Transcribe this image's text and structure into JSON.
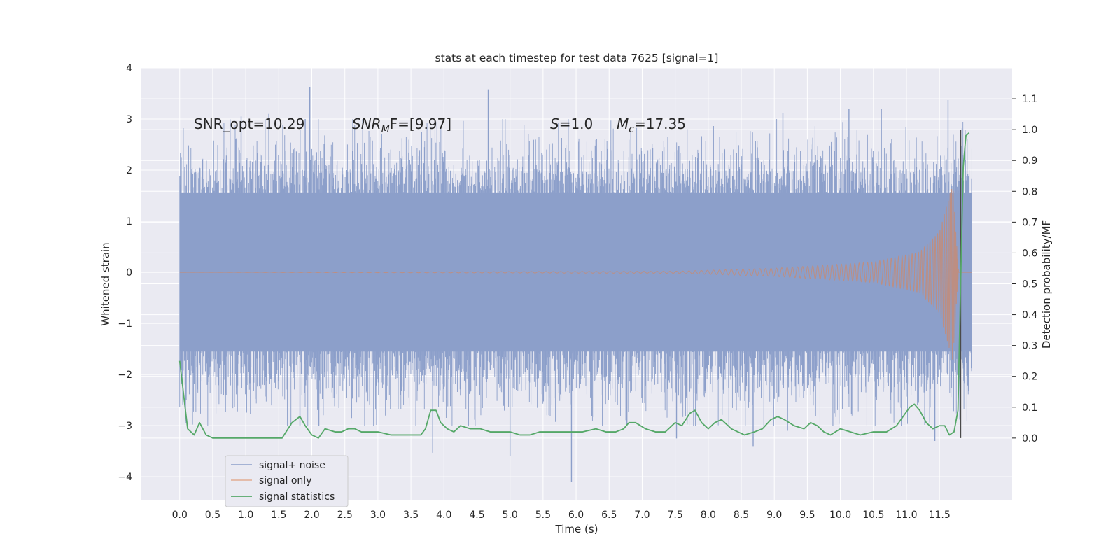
{
  "chart_data": {
    "type": "line",
    "title": "stats at each timestep for test data 7625 [signal=1]",
    "xlabel": "Time (s)",
    "ylabel": "Whitened strain",
    "ylabel_right": "Detection probability/MF",
    "xlim": [
      -0.58,
      12.6
    ],
    "ylim": [
      -4.45,
      4.0
    ],
    "ylim_right": [
      -0.2,
      1.2
    ],
    "x_ticks": [
      0.0,
      0.5,
      1.0,
      1.5,
      2.0,
      2.5,
      3.0,
      3.5,
      4.0,
      4.5,
      5.0,
      5.5,
      6.0,
      6.5,
      7.0,
      7.5,
      8.0,
      8.5,
      9.0,
      9.5,
      10.0,
      10.5,
      11.0,
      11.5
    ],
    "x_tick_labels": [
      "0.0",
      "0.5",
      "1.0",
      "1.5",
      "2.0",
      "2.5",
      "3.0",
      "3.5",
      "4.0",
      "4.5",
      "5.0",
      "5.5",
      "6.0",
      "6.5",
      "7.0",
      "7.5",
      "8.0",
      "8.5",
      "9.0",
      "9.5",
      "10.0",
      "10.5",
      "11.0",
      "11.5"
    ],
    "y_ticks": [
      -4,
      -3,
      -2,
      -1,
      0,
      1,
      2,
      3,
      4
    ],
    "y_tick_labels": [
      "−4",
      "−3",
      "−2",
      "−1",
      "0",
      "1",
      "2",
      "3",
      "4"
    ],
    "y_right_ticks": [
      0.0,
      0.1,
      0.2,
      0.3,
      0.4,
      0.5,
      0.6,
      0.7,
      0.8,
      0.9,
      1.0,
      1.1
    ],
    "y_right_tick_labels": [
      "0.0",
      "0.1",
      "0.2",
      "0.3",
      "0.4",
      "0.5",
      "0.6",
      "0.7",
      "0.8",
      "0.9",
      "1.0",
      "1.1"
    ],
    "grid": true,
    "legend_position": "lower-left",
    "annotations": {
      "snr_opt": "SNR_opt=10.29",
      "snr_mf_symbol": "SNR",
      "snr_mf_sub": "M",
      "snr_mf_tail": "F=[9.97]",
      "s_symbol": "S",
      "s_value": "=1.0",
      "mc_symbol": "M",
      "mc_sub": "c",
      "mc_value": "=17.35"
    },
    "marker_line": {
      "x": 11.82,
      "y_range": [
        0.0,
        1.0
      ]
    },
    "series": [
      {
        "name": "signal+ noise",
        "color": "#8c9fca",
        "x_range": [
          0.0,
          11.99
        ],
        "envelope_core": 1.55,
        "peak_max": 3.62,
        "peak_min": -4.12,
        "notable_spikes": [
          {
            "x": 1.97,
            "y": 3.62
          },
          {
            "x": 4.67,
            "y": 3.58
          },
          {
            "x": 11.63,
            "y": 3.37
          },
          {
            "x": 1.35,
            "y": 3.1
          },
          {
            "x": 9.13,
            "y": 3.12
          },
          {
            "x": 10.13,
            "y": 3.2
          },
          {
            "x": 10.62,
            "y": 3.2
          },
          {
            "x": 0.93,
            "y": 3.05
          },
          {
            "x": 1.9,
            "y": 3.0
          },
          {
            "x": 5.93,
            "y": -4.1
          },
          {
            "x": 5.0,
            "y": -3.6
          },
          {
            "x": 3.83,
            "y": -3.53
          },
          {
            "x": 8.68,
            "y": -3.4
          },
          {
            "x": 7.52,
            "y": -3.25
          },
          {
            "x": 11.43,
            "y": -3.3
          },
          {
            "x": 1.82,
            "y": -3.0
          },
          {
            "x": 9.2,
            "y": -3.1
          }
        ]
      },
      {
        "name": "signal only",
        "color": "#dd8452",
        "x_range": [
          0.0,
          11.99
        ],
        "chirp_peak_time": 11.7,
        "chirp_peak_amplitude": 1.75,
        "amplitude_at": [
          {
            "x": 0.0,
            "y": 0.0
          },
          {
            "x": 7.5,
            "y": 0.02
          },
          {
            "x": 9.0,
            "y": 0.08
          },
          {
            "x": 10.5,
            "y": 0.2
          },
          {
            "x": 11.2,
            "y": 0.4
          },
          {
            "x": 11.5,
            "y": 0.8
          },
          {
            "x": 11.7,
            "y": 1.75
          }
        ]
      },
      {
        "name": "signal statistics",
        "color": "#55a868",
        "axis": "right",
        "x": [
          0.0,
          0.12,
          0.22,
          0.3,
          0.4,
          0.5,
          0.6,
          0.8,
          1.0,
          1.2,
          1.4,
          1.55,
          1.7,
          1.82,
          1.9,
          2.0,
          2.1,
          2.2,
          2.35,
          2.45,
          2.55,
          2.65,
          2.75,
          2.9,
          3.0,
          3.2,
          3.4,
          3.55,
          3.65,
          3.72,
          3.8,
          3.88,
          3.95,
          4.05,
          4.15,
          4.25,
          4.4,
          4.55,
          4.7,
          4.85,
          5.0,
          5.15,
          5.3,
          5.45,
          5.6,
          5.8,
          5.95,
          6.1,
          6.3,
          6.45,
          6.6,
          6.72,
          6.8,
          6.9,
          7.05,
          7.2,
          7.35,
          7.5,
          7.6,
          7.72,
          7.8,
          7.9,
          8.0,
          8.1,
          8.2,
          8.35,
          8.55,
          8.7,
          8.82,
          8.95,
          9.05,
          9.15,
          9.3,
          9.45,
          9.55,
          9.65,
          9.75,
          9.85,
          10.0,
          10.15,
          10.3,
          10.5,
          10.7,
          10.85,
          10.95,
          11.05,
          11.12,
          11.2,
          11.3,
          11.4,
          11.5,
          11.58,
          11.65,
          11.72,
          11.78,
          11.82,
          11.86,
          11.9,
          11.95
        ],
        "y": [
          0.25,
          0.03,
          0.01,
          0.05,
          0.01,
          0.0,
          0.0,
          0.0,
          0.0,
          0.0,
          0.0,
          0.0,
          0.05,
          0.07,
          0.04,
          0.01,
          0.0,
          0.03,
          0.02,
          0.02,
          0.03,
          0.03,
          0.02,
          0.02,
          0.02,
          0.01,
          0.01,
          0.01,
          0.01,
          0.03,
          0.09,
          0.09,
          0.05,
          0.03,
          0.02,
          0.04,
          0.03,
          0.03,
          0.02,
          0.02,
          0.02,
          0.01,
          0.01,
          0.02,
          0.02,
          0.02,
          0.02,
          0.02,
          0.03,
          0.02,
          0.02,
          0.03,
          0.05,
          0.05,
          0.03,
          0.02,
          0.02,
          0.05,
          0.04,
          0.08,
          0.09,
          0.05,
          0.03,
          0.05,
          0.06,
          0.03,
          0.01,
          0.02,
          0.03,
          0.06,
          0.07,
          0.06,
          0.04,
          0.03,
          0.05,
          0.04,
          0.02,
          0.01,
          0.03,
          0.02,
          0.01,
          0.02,
          0.02,
          0.04,
          0.07,
          0.1,
          0.11,
          0.09,
          0.05,
          0.03,
          0.04,
          0.04,
          0.01,
          0.02,
          0.09,
          0.5,
          0.88,
          0.98,
          0.99
        ]
      }
    ]
  }
}
